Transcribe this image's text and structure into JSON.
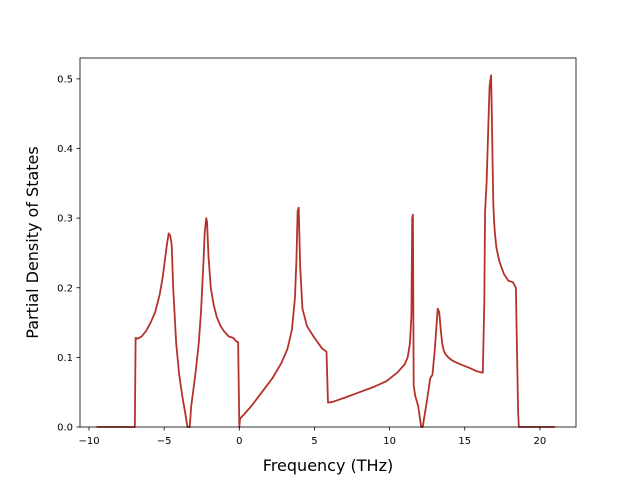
{
  "chart_data": {
    "type": "line",
    "title": "",
    "xlabel": "Frequency (THz)",
    "ylabel": "Partial Density of States",
    "xlim": [
      -10.6,
      22.4
    ],
    "ylim": [
      0,
      0.53
    ],
    "x_ticks": [
      -10,
      -5,
      0,
      5,
      10,
      15,
      20
    ],
    "x_tick_labels": [
      "−10",
      "−5",
      "0",
      "5",
      "10",
      "15",
      "20"
    ],
    "y_ticks": [
      0.0,
      0.1,
      0.2,
      0.3,
      0.4,
      0.5
    ],
    "y_tick_labels": [
      "0.0",
      "0.1",
      "0.2",
      "0.3",
      "0.4",
      "0.5"
    ],
    "grid": false,
    "legend": "none",
    "series": [
      {
        "color": "#b5322a",
        "x": [
          -9.5,
          -6.95,
          -6.9,
          -6.75,
          -6.5,
          -6.2,
          -5.9,
          -5.6,
          -5.3,
          -5.1,
          -4.95,
          -4.8,
          -4.7,
          -4.6,
          -4.5,
          -4.4,
          -4.2,
          -4.0,
          -3.8,
          -3.6,
          -3.45,
          -3.3,
          -3.2,
          -3.05,
          -2.9,
          -2.7,
          -2.55,
          -2.4,
          -2.3,
          -2.2,
          -2.15,
          -2.05,
          -1.9,
          -1.7,
          -1.5,
          -1.25,
          -1.0,
          -0.7,
          -0.4,
          -0.2,
          -0.08,
          0.0,
          0.05,
          0.3,
          0.8,
          1.5,
          2.2,
          2.8,
          3.2,
          3.5,
          3.7,
          3.8,
          3.88,
          3.95,
          4.05,
          4.2,
          4.5,
          5.0,
          5.5,
          5.8,
          5.9,
          6.2,
          7.0,
          8.0,
          9.0,
          9.8,
          10.5,
          11.0,
          11.2,
          11.35,
          11.45,
          11.5,
          11.55,
          11.6,
          11.7,
          11.9,
          12.1,
          12.2,
          12.35,
          12.5,
          12.7,
          12.85,
          13.0,
          13.1,
          13.2,
          13.3,
          13.4,
          13.5,
          13.6,
          13.7,
          13.9,
          14.2,
          14.7,
          15.3,
          15.8,
          16.2,
          16.3,
          16.35,
          16.45,
          16.55,
          16.65,
          16.75,
          16.8,
          16.85,
          16.9,
          16.95,
          17.0,
          17.1,
          17.3,
          17.6,
          17.9,
          18.2,
          18.4,
          18.5,
          18.55,
          18.6,
          18.65,
          21.0
        ],
        "y": [
          0.0,
          0.0,
          0.128,
          0.127,
          0.13,
          0.138,
          0.15,
          0.165,
          0.19,
          0.215,
          0.24,
          0.265,
          0.278,
          0.275,
          0.262,
          0.2,
          0.12,
          0.075,
          0.045,
          0.02,
          0.0,
          0.0,
          0.03,
          0.055,
          0.08,
          0.12,
          0.165,
          0.23,
          0.28,
          0.3,
          0.295,
          0.245,
          0.2,
          0.175,
          0.158,
          0.145,
          0.137,
          0.13,
          0.128,
          0.123,
          0.122,
          0.0,
          0.012,
          0.018,
          0.03,
          0.05,
          0.07,
          0.092,
          0.112,
          0.14,
          0.185,
          0.24,
          0.31,
          0.315,
          0.23,
          0.17,
          0.145,
          0.128,
          0.113,
          0.108,
          0.035,
          0.036,
          0.042,
          0.05,
          0.058,
          0.066,
          0.078,
          0.09,
          0.1,
          0.12,
          0.16,
          0.3,
          0.305,
          0.06,
          0.045,
          0.03,
          0.0,
          0.0,
          0.02,
          0.04,
          0.07,
          0.075,
          0.11,
          0.14,
          0.17,
          0.165,
          0.14,
          0.12,
          0.11,
          0.105,
          0.1,
          0.095,
          0.09,
          0.085,
          0.08,
          0.078,
          0.18,
          0.31,
          0.35,
          0.42,
          0.49,
          0.505,
          0.45,
          0.38,
          0.32,
          0.295,
          0.28,
          0.258,
          0.238,
          0.22,
          0.21,
          0.208,
          0.2,
          0.08,
          0.02,
          0.0,
          0.0,
          0.0
        ]
      }
    ]
  }
}
